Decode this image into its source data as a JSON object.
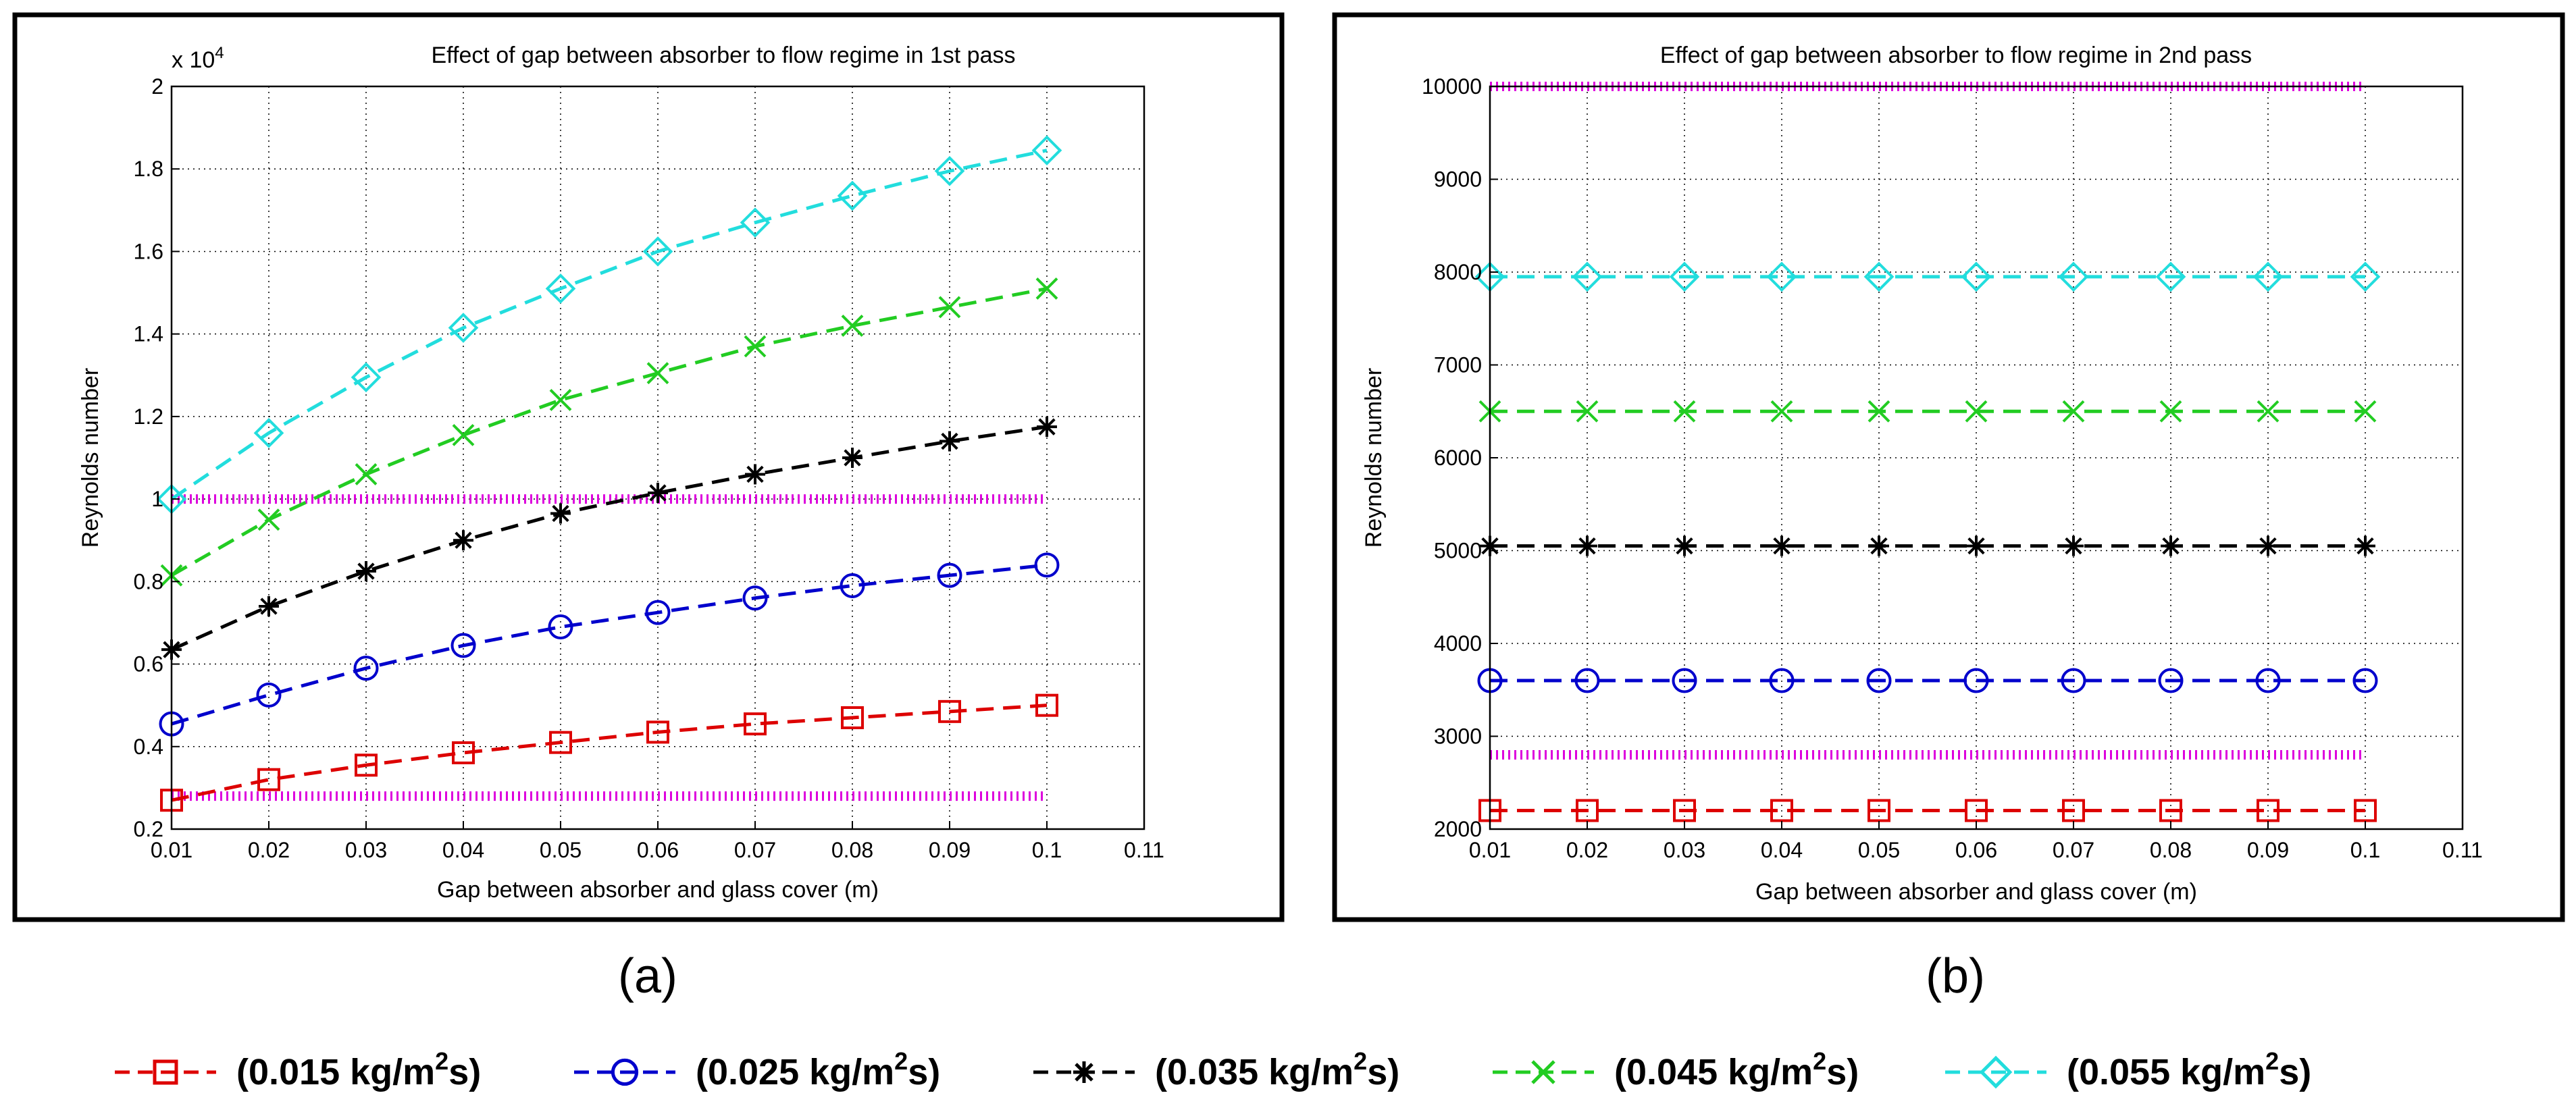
{
  "panels": [
    {
      "caption": "(a)",
      "chart_data": {
        "type": "line",
        "title": "Effect of gap between absorber to flow regime in 1st pass",
        "xlabel": "Gap between absorber and glass cover (m)",
        "ylabel": "Reynolds number",
        "exponent_label": "x 10",
        "exponent_power": "4",
        "xlim": [
          0.01,
          0.11
        ],
        "ylim": [
          0.2,
          2.0
        ],
        "xticks": [
          "0.01",
          "0.02",
          "0.03",
          "0.04",
          "0.05",
          "0.06",
          "0.07",
          "0.08",
          "0.09",
          "0.1",
          "0.11"
        ],
        "yticks": [
          "0.2",
          "0.4",
          "0.6",
          "0.8",
          "1",
          "1.2",
          "1.4",
          "1.6",
          "1.8",
          "2"
        ],
        "grid": true,
        "x": [
          0.01,
          0.02,
          0.03,
          0.04,
          0.05,
          0.06,
          0.07,
          0.08,
          0.09,
          0.1
        ],
        "series": [
          {
            "name": "(0.015 kg/m2s)",
            "color": "#dd0000",
            "marker": "square",
            "values": [
              0.27,
              0.32,
              0.355,
              0.385,
              0.41,
              0.435,
              0.455,
              0.47,
              0.485,
              0.5
            ]
          },
          {
            "name": "(0.025 kg/m2s)",
            "color": "#0000cc",
            "marker": "circle",
            "values": [
              0.455,
              0.525,
              0.59,
              0.645,
              0.69,
              0.725,
              0.76,
              0.79,
              0.815,
              0.84
            ]
          },
          {
            "name": "(0.035 kg/m2s)",
            "color": "#000000",
            "marker": "star",
            "values": [
              0.635,
              0.74,
              0.825,
              0.9,
              0.965,
              1.015,
              1.06,
              1.1,
              1.14,
              1.175
            ]
          },
          {
            "name": "(0.045 kg/m2s)",
            "color": "#22cc22",
            "marker": "x",
            "values": [
              0.815,
              0.95,
              1.06,
              1.155,
              1.24,
              1.305,
              1.37,
              1.42,
              1.465,
              1.51
            ]
          },
          {
            "name": "(0.055 kg/m2s)",
            "color": "#22dddd",
            "marker": "diamond",
            "values": [
              1.0,
              1.16,
              1.295,
              1.415,
              1.51,
              1.6,
              1.67,
              1.735,
              1.795,
              1.845
            ]
          }
        ],
        "reference_lines": [
          {
            "color": "#dd00dd",
            "value": 1.0
          },
          {
            "color": "#dd00dd",
            "value": 0.28
          }
        ]
      }
    },
    {
      "caption": "(b)",
      "chart_data": {
        "type": "line",
        "title": "Effect of gap between absorber to flow regime in 2nd pass",
        "xlabel": "Gap between absorber and glass cover (m)",
        "ylabel": "Reynolds number",
        "exponent_label": "",
        "exponent_power": "",
        "xlim": [
          0.01,
          0.11
        ],
        "ylim": [
          2000,
          10000
        ],
        "xticks": [
          "0.01",
          "0.02",
          "0.03",
          "0.04",
          "0.05",
          "0.06",
          "0.07",
          "0.08",
          "0.09",
          "0.1",
          "0.11"
        ],
        "yticks": [
          "2000",
          "3000",
          "4000",
          "5000",
          "6000",
          "7000",
          "8000",
          "9000",
          "10000"
        ],
        "grid": true,
        "x": [
          0.01,
          0.02,
          0.03,
          0.04,
          0.05,
          0.06,
          0.07,
          0.08,
          0.09,
          0.1
        ],
        "series": [
          {
            "name": "(0.015 kg/m2s)",
            "color": "#dd0000",
            "marker": "square",
            "values": [
              2200,
              2200,
              2200,
              2200,
              2200,
              2200,
              2200,
              2200,
              2200,
              2200
            ]
          },
          {
            "name": "(0.025 kg/m2s)",
            "color": "#0000cc",
            "marker": "circle",
            "values": [
              3600,
              3600,
              3600,
              3600,
              3600,
              3600,
              3600,
              3600,
              3600,
              3600
            ]
          },
          {
            "name": "(0.035 kg/m2s)",
            "color": "#000000",
            "marker": "star",
            "values": [
              5050,
              5050,
              5050,
              5050,
              5050,
              5050,
              5050,
              5050,
              5050,
              5050
            ]
          },
          {
            "name": "(0.045 kg/m2s)",
            "color": "#22cc22",
            "marker": "x",
            "values": [
              6500,
              6500,
              6500,
              6500,
              6500,
              6500,
              6500,
              6500,
              6500,
              6500
            ]
          },
          {
            "name": "(0.055 kg/m2s)",
            "color": "#22dddd",
            "marker": "diamond",
            "values": [
              7950,
              7950,
              7950,
              7950,
              7950,
              7950,
              7950,
              7950,
              7950,
              7950
            ]
          }
        ],
        "reference_lines": [
          {
            "color": "#dd00dd",
            "value": 10000
          },
          {
            "color": "#dd00dd",
            "value": 2800
          }
        ]
      }
    }
  ],
  "legend": [
    {
      "label": "(0.015 kg/m",
      "sup": "2",
      "suffix": "s)",
      "color": "#dd0000",
      "marker": "square"
    },
    {
      "label": "(0.025 kg/m",
      "sup": "2",
      "suffix": "s)",
      "color": "#0000cc",
      "marker": "circle"
    },
    {
      "label": "(0.035 kg/m",
      "sup": "2",
      "suffix": "s)",
      "color": "#000000",
      "marker": "star"
    },
    {
      "label": "(0.045 kg/m",
      "sup": "2",
      "suffix": "s)",
      "color": "#22cc22",
      "marker": "x"
    },
    {
      "label": "(0.055 kg/m",
      "sup": "2",
      "suffix": "s)",
      "color": "#22dddd",
      "marker": "diamond"
    }
  ]
}
